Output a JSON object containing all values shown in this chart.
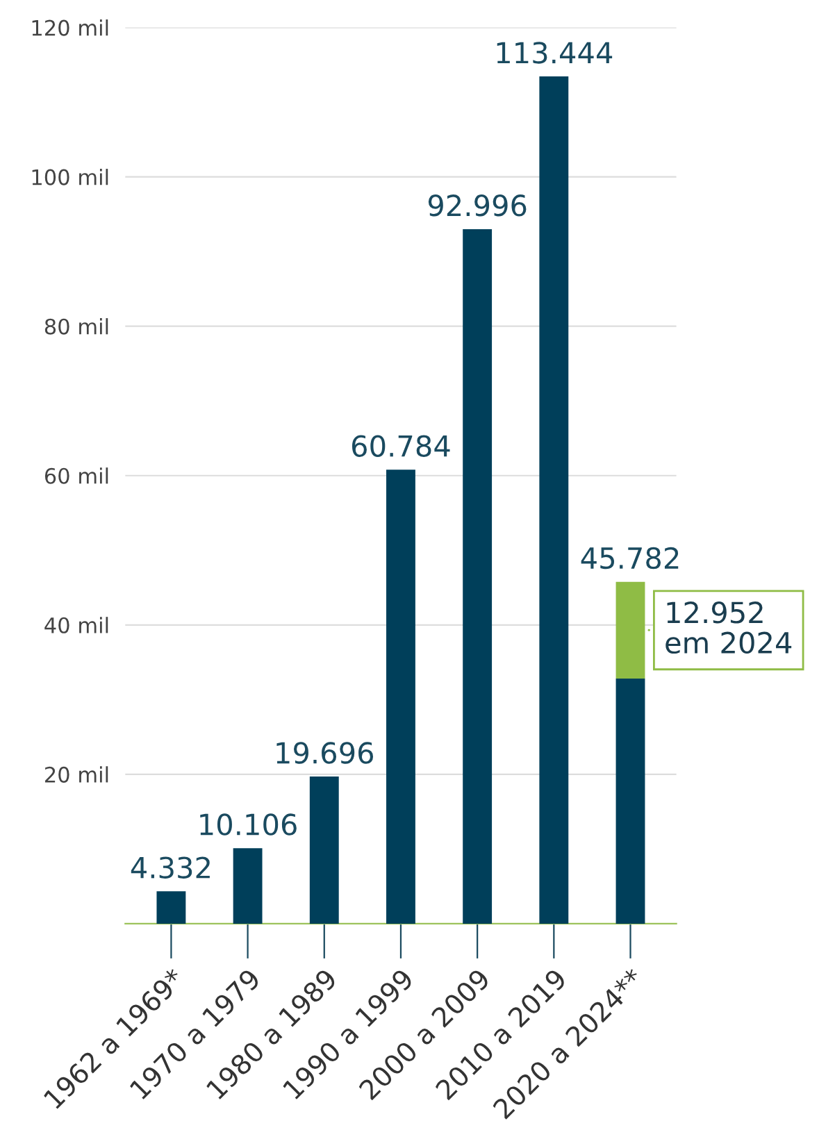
{
  "chart_data": {
    "type": "bar",
    "stacked": true,
    "categories": [
      "1962 a 1969*",
      "1970 a 1979",
      "1980 a 1989",
      "1990 a 1999",
      "2000 a 2009",
      "2010 a 2019",
      "2020 a 2024**"
    ],
    "series": [
      {
        "color": "#003f5a",
        "values": [
          4.332,
          10.106,
          19.696,
          60.784,
          92.996,
          113.444,
          32.83
        ]
      },
      {
        "color": "#8fbc45",
        "values": [
          null,
          null,
          null,
          null,
          null,
          null,
          12.952
        ],
        "value_labels": [
          null,
          null,
          null,
          null,
          null,
          null,
          "12.952\nem 2024"
        ]
      }
    ],
    "totals": [
      "4.332",
      "10.106",
      "19.696",
      "60.784",
      "92.996",
      "113.444",
      "45.782"
    ],
    "ylim": [
      0,
      120
    ],
    "yticks": [
      {
        "value": 20,
        "label": "20 mil"
      },
      {
        "value": 40,
        "label": "40 mil"
      },
      {
        "value": 60,
        "label": "60 mil"
      },
      {
        "value": 80,
        "label": "80 mil"
      },
      {
        "value": 100,
        "label": "100 mil"
      },
      {
        "value": 120,
        "label": "120 mil"
      }
    ],
    "grid": "y",
    "legend": false
  }
}
